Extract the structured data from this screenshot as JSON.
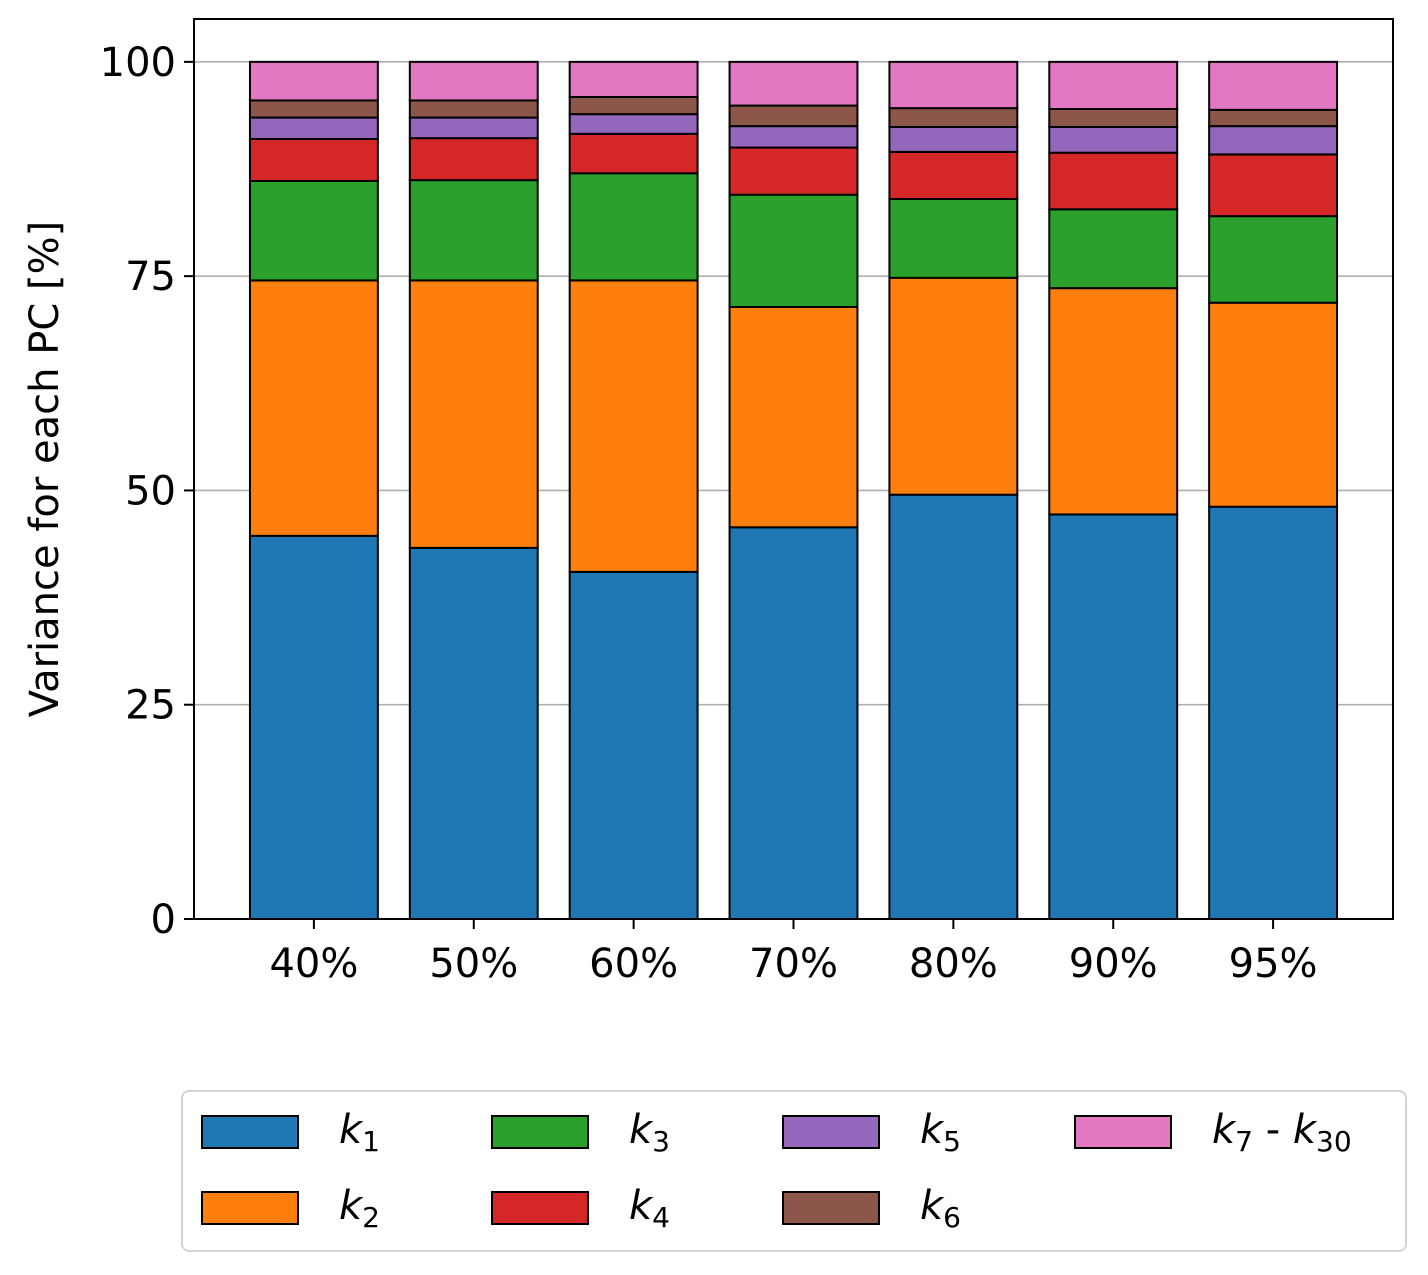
{
  "chart_data": {
    "type": "bar",
    "stacked": true,
    "categories": [
      "40%",
      "50%",
      "60%",
      "70%",
      "80%",
      "90%",
      "95%"
    ],
    "ylabel": "Variance for each PC [%]",
    "xlabel": "",
    "ylim": [
      0,
      105
    ],
    "yticks": [
      0,
      25,
      50,
      75,
      100
    ],
    "grid": "y",
    "legend_position": "bottom",
    "series": [
      {
        "name": "k1",
        "color": "#1f77b4",
        "values": [
          44.7,
          43.3,
          40.5,
          45.7,
          49.5,
          47.2,
          48.1
        ]
      },
      {
        "name": "k2",
        "color": "#ff7f0e",
        "values": [
          29.8,
          31.2,
          34.0,
          25.7,
          25.3,
          26.4,
          23.8
        ]
      },
      {
        "name": "k3",
        "color": "#2ca02c",
        "values": [
          11.6,
          11.7,
          12.5,
          13.1,
          9.2,
          9.2,
          10.1
        ]
      },
      {
        "name": "k4",
        "color": "#d62728",
        "values": [
          4.9,
          4.9,
          4.6,
          5.5,
          5.5,
          6.6,
          7.2
        ]
      },
      {
        "name": "k5",
        "color": "#9467bd",
        "values": [
          2.5,
          2.4,
          2.3,
          2.5,
          2.9,
          3.0,
          3.3
        ]
      },
      {
        "name": "k6",
        "color": "#8c564b",
        "values": [
          2.0,
          2.0,
          2.0,
          2.4,
          2.2,
          2.1,
          1.9
        ]
      },
      {
        "name": "k7 - k30",
        "color": "#e377c2",
        "values": [
          4.5,
          4.5,
          4.1,
          5.1,
          5.4,
          5.5,
          5.6
        ]
      }
    ]
  },
  "legend": {
    "k1": {
      "base": "k",
      "sub": "1",
      "rest": ""
    },
    "k2": {
      "base": "k",
      "sub": "2",
      "rest": ""
    },
    "k3": {
      "base": "k",
      "sub": "3",
      "rest": ""
    },
    "k4": {
      "base": "k",
      "sub": "4",
      "rest": ""
    },
    "k5": {
      "base": "k",
      "sub": "5",
      "rest": ""
    },
    "k6": {
      "base": "k",
      "sub": "6",
      "rest": ""
    },
    "k7": {
      "base": "k",
      "sub": "7",
      "rest": " - ",
      "base2": "k",
      "sub2": "30"
    }
  }
}
